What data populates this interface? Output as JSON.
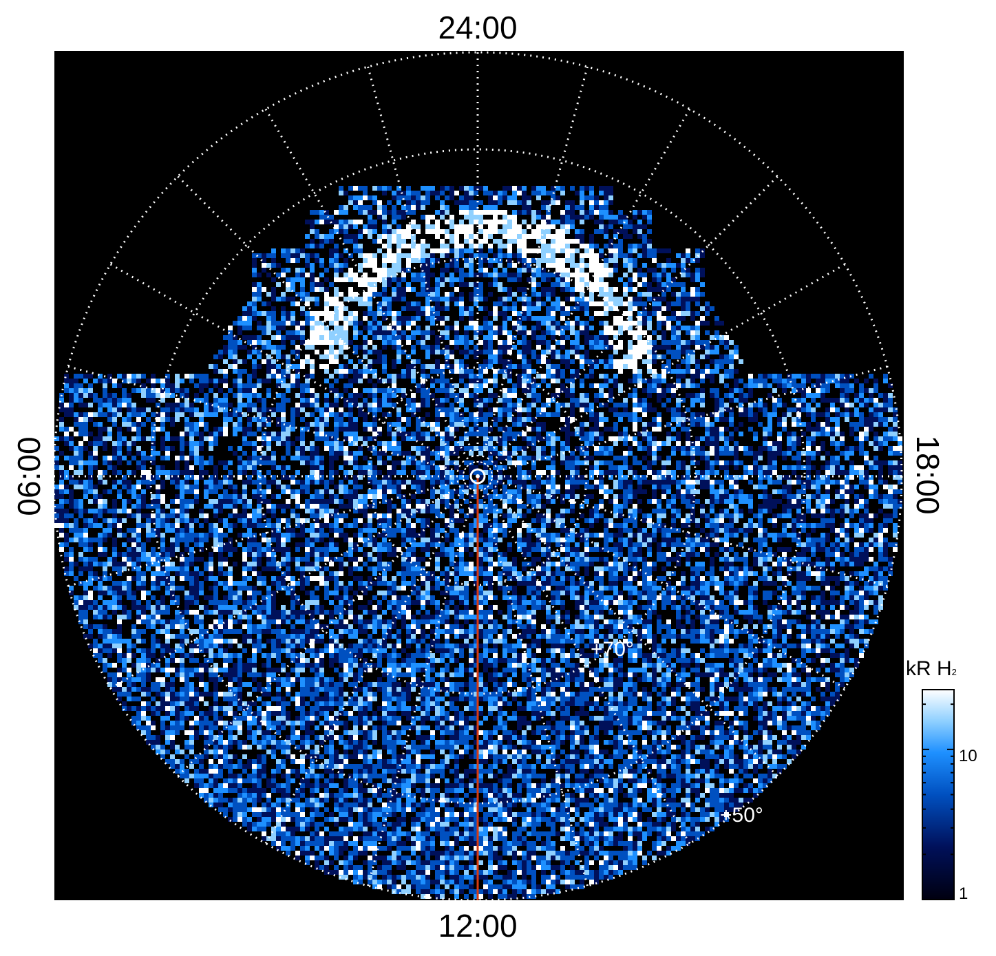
{
  "local_time_labels": {
    "top": "24:00",
    "bottom": "12:00",
    "left": "06:00",
    "right": "18:00"
  },
  "latitude_labels": {
    "inner": "+70°",
    "outer": "+50°"
  },
  "colorbar": {
    "unit_main": "kR H",
    "unit_sub": "2",
    "tick_high": "10",
    "tick_low": "1",
    "scale": "log"
  },
  "colors": {
    "background": "#000000",
    "grid": "#ffffff",
    "meridian_line": "#d83a10",
    "colormap": [
      "#000010",
      "#00105a",
      "#0050c0",
      "#1e90ff",
      "#8fd0ff",
      "#ffffff"
    ]
  }
}
